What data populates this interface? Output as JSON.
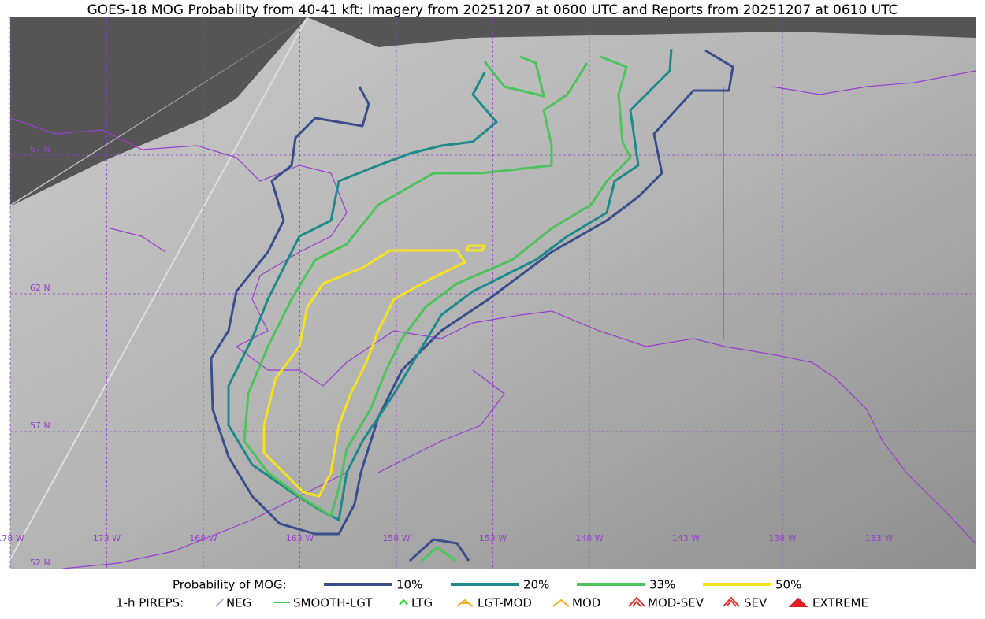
{
  "title": "GOES-18 MOG Probability from 40-41 kft: Imagery from 20251207 at 0600 UTC and Reports from 20251207 at 0610 UTC",
  "map": {
    "lat_labels": [
      "67 N",
      "62 N",
      "57 N",
      "52 N"
    ],
    "lon_labels": [
      "178 W",
      "173 W",
      "168 W",
      "163 W",
      "158 W",
      "153 W",
      "148 W",
      "143 W",
      "138 W",
      "133 W"
    ]
  },
  "legend": {
    "probability": {
      "label": "Probability of MOG:",
      "items": [
        {
          "label": "10%",
          "color": "#3b4e8c"
        },
        {
          "label": "20%",
          "color": "#1f8a8b"
        },
        {
          "label": "33%",
          "color": "#4dc35c"
        },
        {
          "label": "50%",
          "color": "#f5e21d"
        }
      ]
    },
    "pireps": {
      "label": "1-h PIREPS:",
      "items": [
        {
          "label": "NEG",
          "color": "#b4b4f0"
        },
        {
          "label": "SMOOTH-LGT",
          "color": "#3dcc3d"
        },
        {
          "label": "LTG",
          "color": "#14e014"
        },
        {
          "label": "LGT-MOD",
          "color": "#f0b020"
        },
        {
          "label": "MOD",
          "color": "#f0b020"
        },
        {
          "label": "MOD-SEV",
          "color": "#e03030"
        },
        {
          "label": "SEV",
          "color": "#e03030"
        },
        {
          "label": "EXTREME",
          "color": "#e02020"
        }
      ]
    }
  }
}
